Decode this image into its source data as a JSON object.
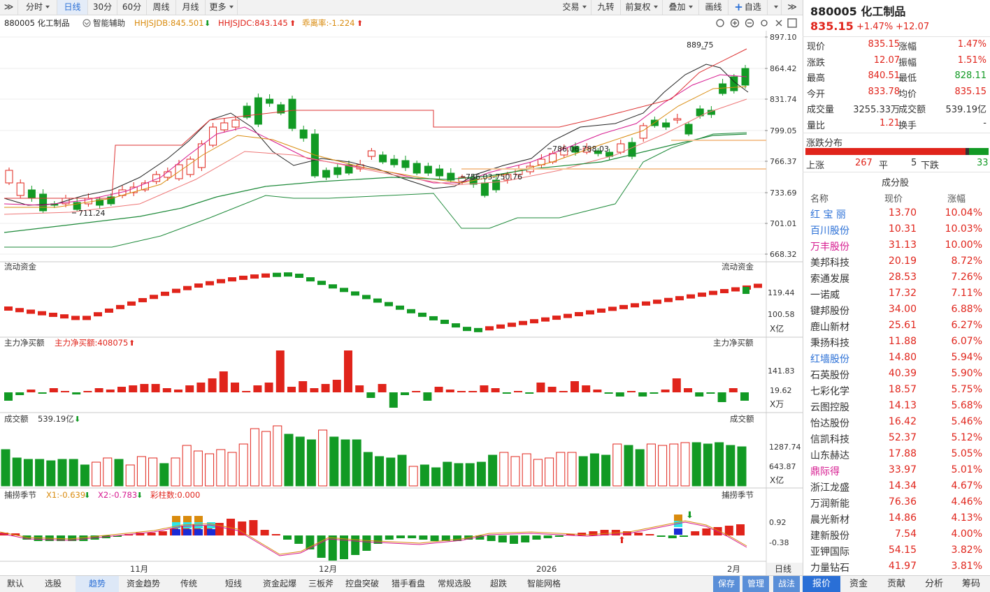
{
  "toolbar": {
    "tabs": [
      "分时",
      "日线",
      "30分",
      "60分",
      "周线",
      "月线",
      "更多"
    ],
    "right": [
      "交易",
      "九转",
      "前复权",
      "叠加",
      "画线",
      "自选"
    ],
    "collapse": "≫"
  },
  "chart_header": {
    "code_name": "880005 化工制品",
    "assist": "智能辅助",
    "hhjsjdb": "HHJSJDB:845.501",
    "hhjsjdc": "HHJSJDC:843.145",
    "deviation": "乖离率:-1.224"
  },
  "price_axis": [
    "897.10",
    "864.42",
    "831.74",
    "799.05",
    "766.37",
    "733.69",
    "701.01",
    "668.32"
  ],
  "price_labels": {
    "high": "889.75",
    "low": "711.24",
    "mid1": "786.06-788.03",
    "mid2": "756.03-750.76"
  },
  "panels": {
    "flow": {
      "title": "流动资金",
      "right_title": "流动资金",
      "ticks": [
        "119.44",
        "100.58"
      ],
      "unit": "X亿"
    },
    "main": {
      "title": "主力净买额",
      "value": "主力净买额:408075",
      "right_title": "主力净买额",
      "ticks": [
        "141.83",
        "19.62"
      ],
      "unit": "X万"
    },
    "turnover": {
      "title": "成交额",
      "value": "539.19亿",
      "right_title": "成交额",
      "ticks": [
        "1287.74",
        "643.87"
      ],
      "unit": "X亿"
    },
    "season": {
      "title": "捕捞季节",
      "x1": "X1:-0.639",
      "x2": "X2:-0.783",
      "bars": "彩柱数:0.000",
      "right_title": "捕捞季节",
      "ticks": [
        "0.92",
        "-0.38"
      ]
    }
  },
  "x_axis": [
    "11月",
    "12月",
    "2026",
    "2月"
  ],
  "period_label": "日线",
  "bottom_tabs": [
    "默认",
    "选股",
    "趋势",
    "资金趋势",
    "传统",
    "短线",
    "资金起爆",
    "三板斧",
    "控盘突破",
    "猎手看盘",
    "常规选股",
    "超跌",
    "智能网格"
  ],
  "bottom_right": [
    "保存",
    "管理",
    "战法"
  ],
  "quote": {
    "code": "880005",
    "name": "化工制品",
    "price": "835.15",
    "change_pct": "+1.47%",
    "change": "+12.07",
    "rows": [
      [
        "现价",
        "835.15",
        "涨幅",
        "1.47%"
      ],
      [
        "涨跌",
        "12.07",
        "振幅",
        "1.51%"
      ],
      [
        "最高",
        "840.51",
        "最低",
        "828.11"
      ],
      [
        "今开",
        "833.78",
        "均价",
        "835.15"
      ],
      [
        "成交量",
        "3255.33万",
        "成交额",
        "539.19亿"
      ],
      [
        "量比",
        "1.21",
        "换手",
        "-"
      ]
    ]
  },
  "distribution": {
    "title": "涨跌分布",
    "up_label": "上涨",
    "up": "267",
    "flat_label": "平",
    "flat": "5",
    "down_label": "下跌",
    "down": "33",
    "up_count": 267,
    "flat_count": 5,
    "down_count": 33
  },
  "components": {
    "title": "成分股",
    "headers": [
      "名称",
      "现价",
      "涨幅"
    ],
    "rows": [
      {
        "name": "红 宝 丽",
        "price": "13.70",
        "pct": "10.04%",
        "c": "blue"
      },
      {
        "name": "百川股份",
        "price": "10.31",
        "pct": "10.03%",
        "c": "blue"
      },
      {
        "name": "万丰股份",
        "price": "31.13",
        "pct": "10.00%",
        "c": "mag"
      },
      {
        "name": "美邦科技",
        "price": "20.19",
        "pct": "8.72%",
        "c": ""
      },
      {
        "name": "索通发展",
        "price": "28.53",
        "pct": "7.26%",
        "c": ""
      },
      {
        "name": "一诺威",
        "price": "17.32",
        "pct": "7.11%",
        "c": ""
      },
      {
        "name": "键邦股份",
        "price": "34.00",
        "pct": "6.88%",
        "c": ""
      },
      {
        "name": "鹿山新材",
        "price": "25.61",
        "pct": "6.27%",
        "c": ""
      },
      {
        "name": "秉扬科技",
        "price": "11.88",
        "pct": "6.07%",
        "c": ""
      },
      {
        "name": "红墙股份",
        "price": "14.80",
        "pct": "5.94%",
        "c": "blue"
      },
      {
        "name": "石英股份",
        "price": "40.39",
        "pct": "5.90%",
        "c": ""
      },
      {
        "name": "七彩化学",
        "price": "18.57",
        "pct": "5.75%",
        "c": ""
      },
      {
        "name": "云图控股",
        "price": "14.13",
        "pct": "5.68%",
        "c": ""
      },
      {
        "name": "怡达股份",
        "price": "16.42",
        "pct": "5.46%",
        "c": ""
      },
      {
        "name": "信凯科技",
        "price": "52.37",
        "pct": "5.12%",
        "c": ""
      },
      {
        "name": "山东赫达",
        "price": "17.88",
        "pct": "5.05%",
        "c": ""
      },
      {
        "name": "鼎际得",
        "price": "33.97",
        "pct": "5.01%",
        "c": "mag"
      },
      {
        "name": "浙江龙盛",
        "price": "14.34",
        "pct": "4.67%",
        "c": ""
      },
      {
        "name": "万润新能",
        "price": "76.36",
        "pct": "4.46%",
        "c": ""
      },
      {
        "name": "晨光新材",
        "price": "14.86",
        "pct": "4.13%",
        "c": ""
      },
      {
        "name": "建新股份",
        "price": "7.54",
        "pct": "4.00%",
        "c": ""
      },
      {
        "name": "亚钾国际",
        "price": "54.15",
        "pct": "3.82%",
        "c": ""
      },
      {
        "name": "力量钻石",
        "price": "41.97",
        "pct": "3.81%",
        "c": ""
      }
    ]
  },
  "right_tabs": [
    "报价",
    "资金",
    "贡献",
    "分析",
    "筹码"
  ],
  "colors": {
    "up": "#e0241b",
    "down": "#129a24",
    "accent": "#2a6fd6"
  }
}
